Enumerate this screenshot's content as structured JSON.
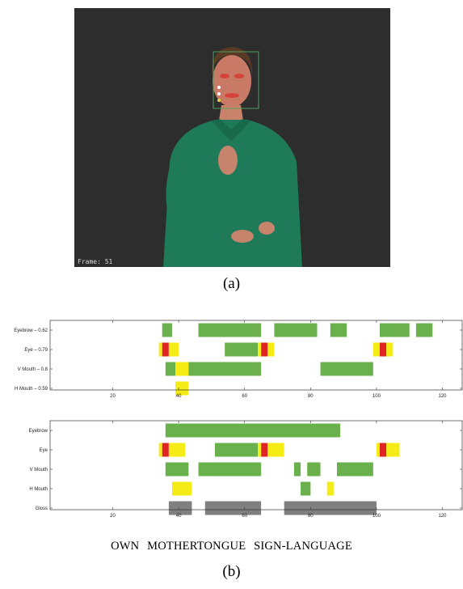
{
  "figure_a": {
    "frame_label": "Frame: 51",
    "caption": "(a)"
  },
  "figure_b": {
    "caption": "(b)",
    "gloss_sentence": "OWN   MOTHERTONGUE   SIGN-LANGUAGE",
    "colors": {
      "green": "#6ab04c",
      "yellow": "#f5ec16",
      "red": "#e02424",
      "gray": "#808080"
    },
    "xlim": [
      1,
      126
    ],
    "xticks": [
      20,
      40,
      60,
      80,
      100,
      120
    ],
    "panels": [
      {
        "rows": [
          {
            "label": "Eyebrow – 0.62",
            "segments": [
              {
                "start": 35,
                "end": 38,
                "color": "green"
              },
              {
                "start": 46,
                "end": 65,
                "color": "green"
              },
              {
                "start": 69,
                "end": 82,
                "color": "green"
              },
              {
                "start": 86,
                "end": 91,
                "color": "green"
              },
              {
                "start": 101,
                "end": 110,
                "color": "green"
              },
              {
                "start": 112,
                "end": 117,
                "color": "green"
              }
            ]
          },
          {
            "label": "Eye – 0.79",
            "segments": [
              {
                "start": 34,
                "end": 35,
                "color": "yellow"
              },
              {
                "start": 35,
                "end": 37,
                "color": "red"
              },
              {
                "start": 37,
                "end": 40,
                "color": "yellow"
              },
              {
                "start": 54,
                "end": 64,
                "color": "green"
              },
              {
                "start": 64,
                "end": 65,
                "color": "yellow"
              },
              {
                "start": 65,
                "end": 67,
                "color": "red"
              },
              {
                "start": 67,
                "end": 69,
                "color": "yellow"
              },
              {
                "start": 99,
                "end": 101,
                "color": "yellow"
              },
              {
                "start": 101,
                "end": 103,
                "color": "red"
              },
              {
                "start": 103,
                "end": 105,
                "color": "yellow"
              }
            ]
          },
          {
            "label": "V Mouth – 0.8",
            "segments": [
              {
                "start": 36,
                "end": 39,
                "color": "green"
              },
              {
                "start": 39,
                "end": 43,
                "color": "yellow"
              },
              {
                "start": 43,
                "end": 65,
                "color": "green"
              },
              {
                "start": 83,
                "end": 99,
                "color": "green"
              }
            ]
          },
          {
            "label": "H Mouth – 0.59",
            "segments": [
              {
                "start": 39,
                "end": 43,
                "color": "yellow"
              }
            ]
          }
        ]
      },
      {
        "rows": [
          {
            "label": "Eyebrow",
            "segments": [
              {
                "start": 36,
                "end": 89,
                "color": "green"
              }
            ]
          },
          {
            "label": "Eye",
            "segments": [
              {
                "start": 34,
                "end": 35,
                "color": "yellow"
              },
              {
                "start": 35,
                "end": 37,
                "color": "red"
              },
              {
                "start": 37,
                "end": 42,
                "color": "yellow"
              },
              {
                "start": 51,
                "end": 64,
                "color": "green"
              },
              {
                "start": 64,
                "end": 65,
                "color": "yellow"
              },
              {
                "start": 65,
                "end": 67,
                "color": "red"
              },
              {
                "start": 67,
                "end": 72,
                "color": "yellow"
              },
              {
                "start": 100,
                "end": 101,
                "color": "yellow"
              },
              {
                "start": 101,
                "end": 103,
                "color": "red"
              },
              {
                "start": 103,
                "end": 107,
                "color": "yellow"
              }
            ]
          },
          {
            "label": "V Mouth",
            "segments": [
              {
                "start": 36,
                "end": 43,
                "color": "green"
              },
              {
                "start": 46,
                "end": 65,
                "color": "green"
              },
              {
                "start": 75,
                "end": 77,
                "color": "green"
              },
              {
                "start": 79,
                "end": 83,
                "color": "green"
              },
              {
                "start": 88,
                "end": 99,
                "color": "green"
              }
            ]
          },
          {
            "label": "H Mouth",
            "segments": [
              {
                "start": 38,
                "end": 44,
                "color": "yellow"
              },
              {
                "start": 77,
                "end": 80,
                "color": "green"
              },
              {
                "start": 85,
                "end": 87,
                "color": "yellow"
              }
            ]
          },
          {
            "label": "Gloss",
            "segments": [
              {
                "start": 37,
                "end": 44,
                "color": "gray"
              },
              {
                "start": 48,
                "end": 65,
                "color": "gray"
              },
              {
                "start": 72,
                "end": 100,
                "color": "gray"
              }
            ]
          }
        ]
      }
    ]
  }
}
